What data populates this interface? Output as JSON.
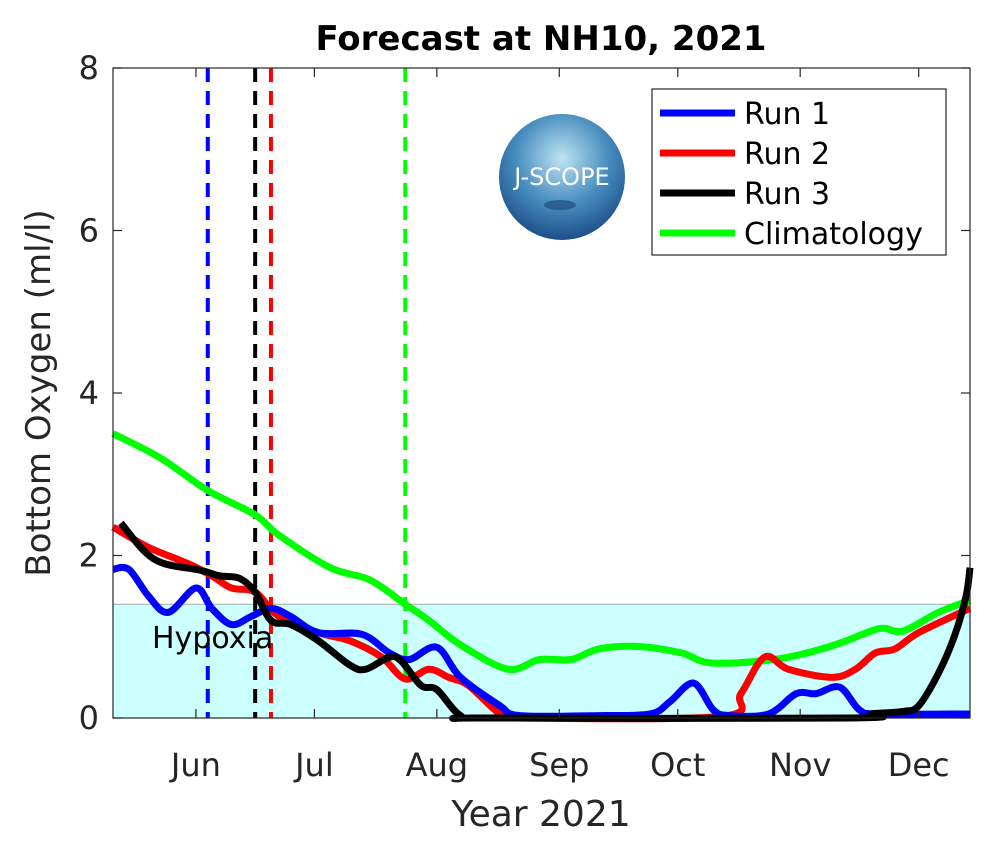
{
  "chart_data": {
    "type": "line",
    "title": "Forecast at NH10, 2021",
    "xlabel": "Year 2021",
    "ylabel": "Bottom Oxygen (ml/l)",
    "x_units": "day of year 2021",
    "xlim": [
      131,
      348
    ],
    "ylim": [
      0,
      8
    ],
    "yticks": [
      0,
      2,
      4,
      6,
      8
    ],
    "xticks": [
      {
        "day": 152,
        "label": "Jun"
      },
      {
        "day": 182,
        "label": "Jul"
      },
      {
        "day": 213,
        "label": "Aug"
      },
      {
        "day": 244,
        "label": "Sep"
      },
      {
        "day": 274,
        "label": "Oct"
      },
      {
        "day": 305,
        "label": "Nov"
      },
      {
        "day": 335,
        "label": "Dec"
      }
    ],
    "grid": false,
    "legend_position": "top-right",
    "hypoxia": {
      "label": "Hypoxia",
      "threshold": 1.4,
      "color": "#ccffff"
    },
    "logo_text": "J-SCOPE",
    "series": [
      {
        "name": "Run 1",
        "color": "#0000ff",
        "forecast_start_day": 155,
        "x": [
          131,
          135,
          140,
          145,
          152,
          156,
          161,
          166,
          171,
          176,
          183,
          194,
          201,
          206,
          213,
          219,
          229,
          234,
          254,
          267,
          272,
          278,
          283,
          287,
          297,
          304,
          309,
          315,
          320,
          325,
          348
        ],
        "y": [
          1.83,
          1.83,
          1.5,
          1.3,
          1.6,
          1.35,
          1.15,
          1.25,
          1.35,
          1.25,
          1.05,
          1.03,
          0.8,
          0.72,
          0.87,
          0.5,
          0.15,
          0.03,
          0.03,
          0.05,
          0.2,
          0.43,
          0.1,
          0.03,
          0.05,
          0.3,
          0.3,
          0.38,
          0.1,
          0.05,
          0.05
        ]
      },
      {
        "name": "Run 2",
        "color": "#ff0000",
        "forecast_start_day": 171,
        "x": [
          131,
          140,
          150,
          156,
          161,
          167,
          173,
          183,
          191,
          199,
          205,
          211,
          216,
          221,
          229,
          234,
          285,
          290,
          296,
          302,
          313,
          319,
          324,
          329,
          335,
          348
        ],
        "y": [
          2.35,
          2.1,
          1.9,
          1.75,
          1.6,
          1.55,
          1.25,
          1.05,
          0.95,
          0.75,
          0.48,
          0.6,
          0.5,
          0.4,
          0.05,
          0.0,
          0.02,
          0.3,
          0.75,
          0.6,
          0.5,
          0.6,
          0.8,
          0.85,
          1.05,
          1.35
        ]
      },
      {
        "name": "Run 3",
        "color": "#000000",
        "forecast_start_day": 167,
        "x": [
          133,
          139,
          144,
          153,
          158,
          163,
          167,
          171,
          176,
          183,
          191,
          195,
          201,
          204,
          209,
          213,
          219,
          226,
          318,
          323,
          331,
          335,
          340,
          344,
          347,
          348
        ],
        "y": [
          2.4,
          2.05,
          1.9,
          1.82,
          1.75,
          1.72,
          1.55,
          1.2,
          1.15,
          0.95,
          0.65,
          0.6,
          0.75,
          0.7,
          0.4,
          0.35,
          0.03,
          0.0,
          0.0,
          0.05,
          0.08,
          0.15,
          0.55,
          1.0,
          1.5,
          1.85
        ]
      },
      {
        "name": "Climatology",
        "color": "#00ff00",
        "forecast_start_day": 205,
        "x": [
          131,
          143,
          155,
          167,
          173,
          186,
          196,
          205,
          211,
          219,
          231,
          239,
          247,
          254,
          264,
          275,
          282,
          295,
          305,
          315,
          325,
          331,
          340,
          348
        ],
        "y": [
          3.5,
          3.2,
          2.8,
          2.5,
          2.25,
          1.85,
          1.7,
          1.4,
          1.2,
          0.9,
          0.6,
          0.72,
          0.72,
          0.85,
          0.88,
          0.8,
          0.68,
          0.7,
          0.78,
          0.92,
          1.1,
          1.07,
          1.3,
          1.45
        ]
      }
    ]
  }
}
